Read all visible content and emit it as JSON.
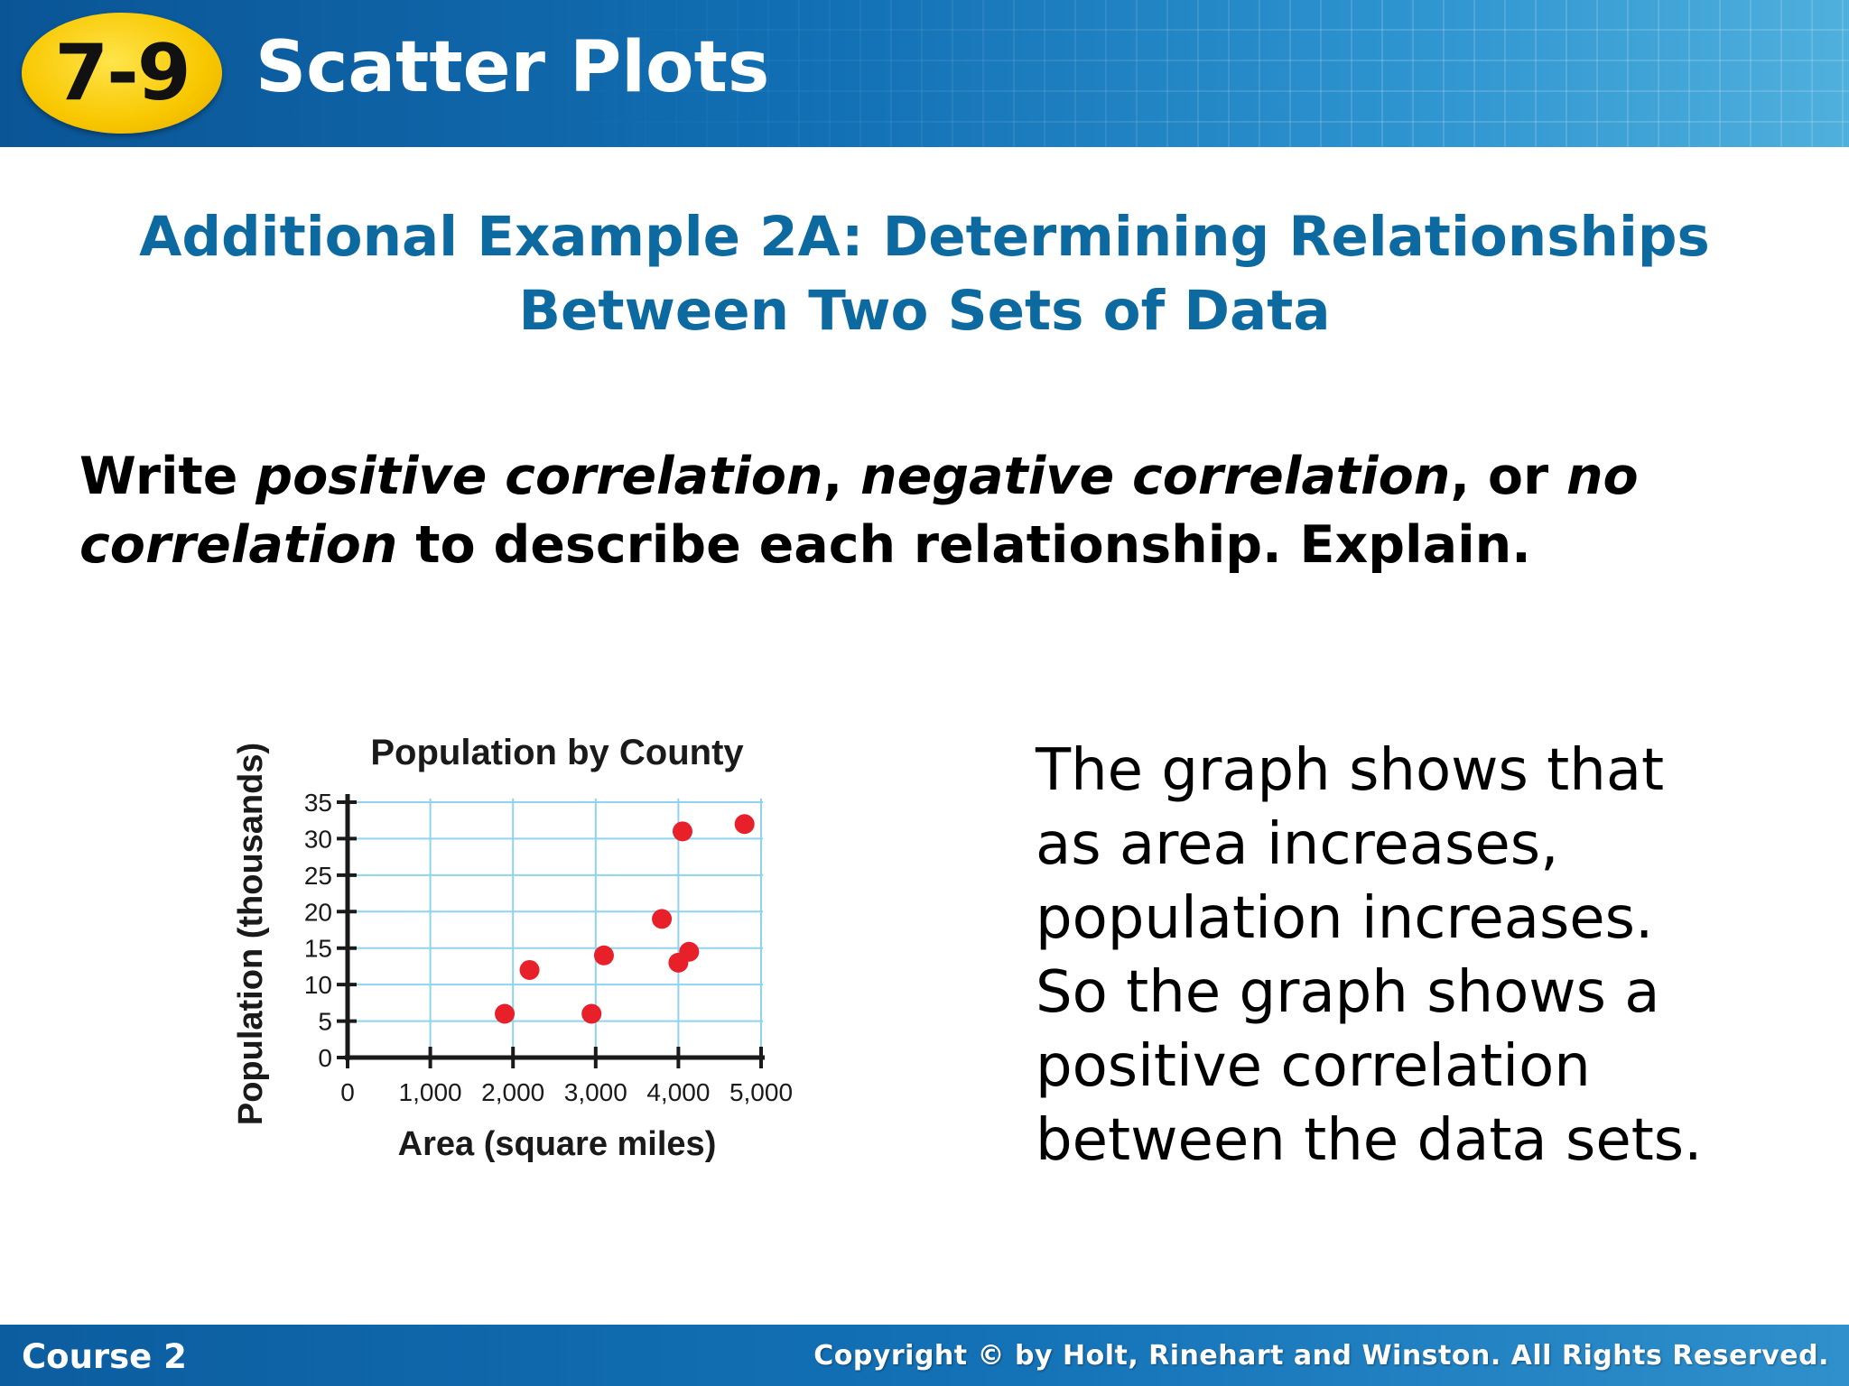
{
  "header": {
    "lesson_number": "7-9",
    "lesson_title": "Scatter Plots"
  },
  "heading": {
    "line1": "Additional Example 2A: Determining Relationships",
    "line2": "Between Two Sets of Data"
  },
  "instructions": {
    "part1": "Write ",
    "term1": "positive correlation",
    "part2": ", ",
    "term2": "negative correlation",
    "part3": ", or ",
    "term3": "no",
    "term3b": "correlation",
    "part4": " to describe each relationship. Explain."
  },
  "explanation": {
    "lines": [
      "The graph shows that",
      "as area increases,",
      "population increases.",
      "So the graph shows a",
      "positive correlation",
      "between the data sets."
    ]
  },
  "footer": {
    "course": "Course 2",
    "copyright": "Copyright © by Holt, Rinehart and Winston. All Rights Reserved."
  },
  "colors": {
    "header_blue": "#0d64a8",
    "heading_blue": "#0d6aa1",
    "badge_yellow": "#f8c700",
    "point_red": "#e8202a",
    "grid_blue": "#8fd3ef"
  },
  "chart_data": {
    "type": "scatter",
    "title": "Population by County",
    "xlabel": "Area (square miles)",
    "ylabel": "Population (thousands)",
    "xlim": [
      0,
      5000
    ],
    "ylim": [
      0,
      35
    ],
    "x_ticks": [
      0,
      1000,
      2000,
      3000,
      4000,
      5000
    ],
    "x_tick_labels": [
      "0",
      "1,000",
      "2,000",
      "3,000",
      "4,000",
      "5,000"
    ],
    "y_ticks": [
      0,
      5,
      10,
      15,
      20,
      25,
      30,
      35
    ],
    "y_tick_labels": [
      "0",
      "5",
      "10",
      "15",
      "20",
      "25",
      "30",
      "35"
    ],
    "grid": true,
    "points": [
      {
        "x": 1900,
        "y": 6
      },
      {
        "x": 2200,
        "y": 12
      },
      {
        "x": 2950,
        "y": 6
      },
      {
        "x": 3100,
        "y": 14
      },
      {
        "x": 3800,
        "y": 19
      },
      {
        "x": 4000,
        "y": 13
      },
      {
        "x": 4050,
        "y": 31
      },
      {
        "x": 4130,
        "y": 14.5
      },
      {
        "x": 4800,
        "y": 32
      }
    ]
  }
}
